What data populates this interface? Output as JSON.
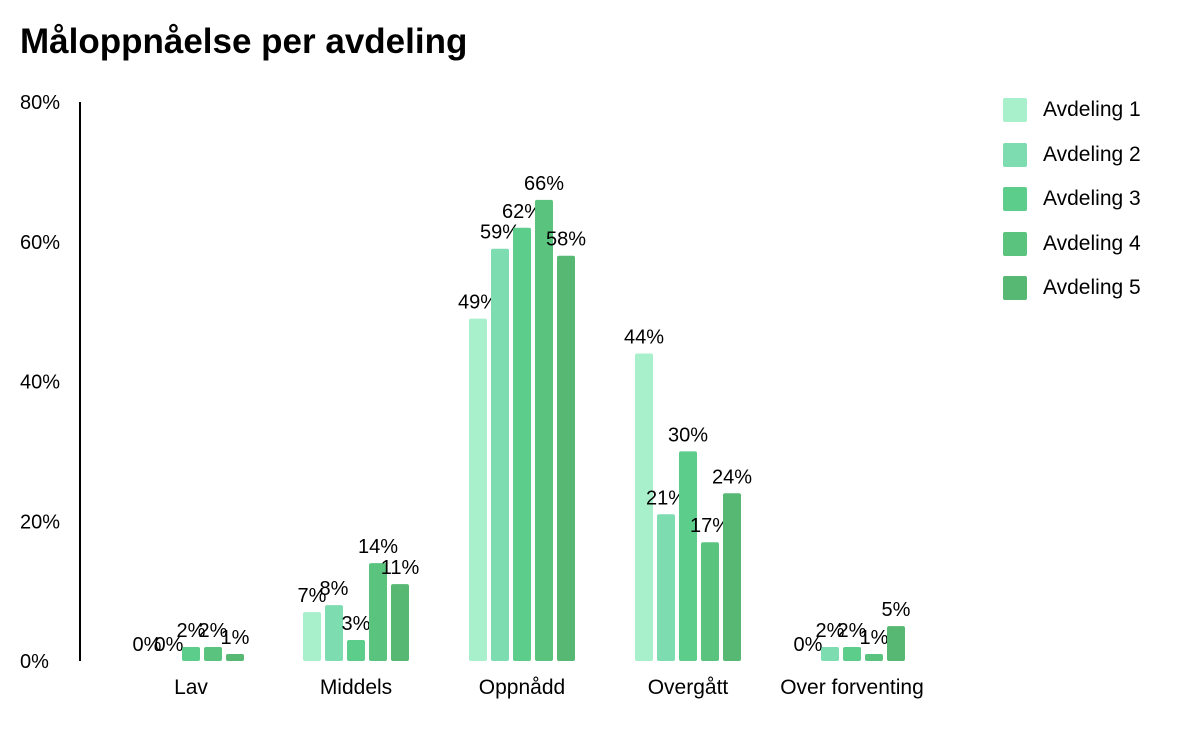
{
  "chart_data": {
    "type": "bar",
    "title": "Måloppnåelse per avdeling",
    "categories": [
      "Lav",
      "Middels",
      "Oppnådd",
      "Overgått",
      "Over forventing"
    ],
    "series": [
      {
        "name": "Avdeling 1",
        "color": "#a8f0cb",
        "values": [
          0,
          7,
          49,
          44,
          0
        ],
        "labels": [
          "0%",
          "7%",
          "49%",
          "44%",
          "0%"
        ]
      },
      {
        "name": "Avdeling 2",
        "color": "#7edcb1",
        "values": [
          0,
          8,
          59,
          21,
          2
        ],
        "labels": [
          "0%",
          "8%",
          "59%",
          "21%",
          "2%"
        ]
      },
      {
        "name": "Avdeling 3",
        "color": "#5ccd8a",
        "values": [
          2,
          3,
          62,
          30,
          2
        ],
        "labels": [
          "2%",
          "3%",
          "62%",
          "30%",
          "2%"
        ]
      },
      {
        "name": "Avdeling 4",
        "color": "#5ac47e",
        "values": [
          2,
          14,
          66,
          17,
          1
        ],
        "labels": [
          "2%",
          "14%",
          "66%",
          "17%",
          "1%"
        ]
      },
      {
        "name": "Avdeling 5",
        "color": "#56b872",
        "values": [
          1,
          11,
          58,
          24,
          5
        ],
        "labels": [
          "1%",
          "11%",
          "58%",
          "24%",
          "5%"
        ]
      }
    ],
    "y_ticks": [
      "0%",
      "20%",
      "40%",
      "60%",
      "80%"
    ],
    "ylim": [
      0,
      80
    ],
    "grid": false,
    "legend_position": "right"
  }
}
